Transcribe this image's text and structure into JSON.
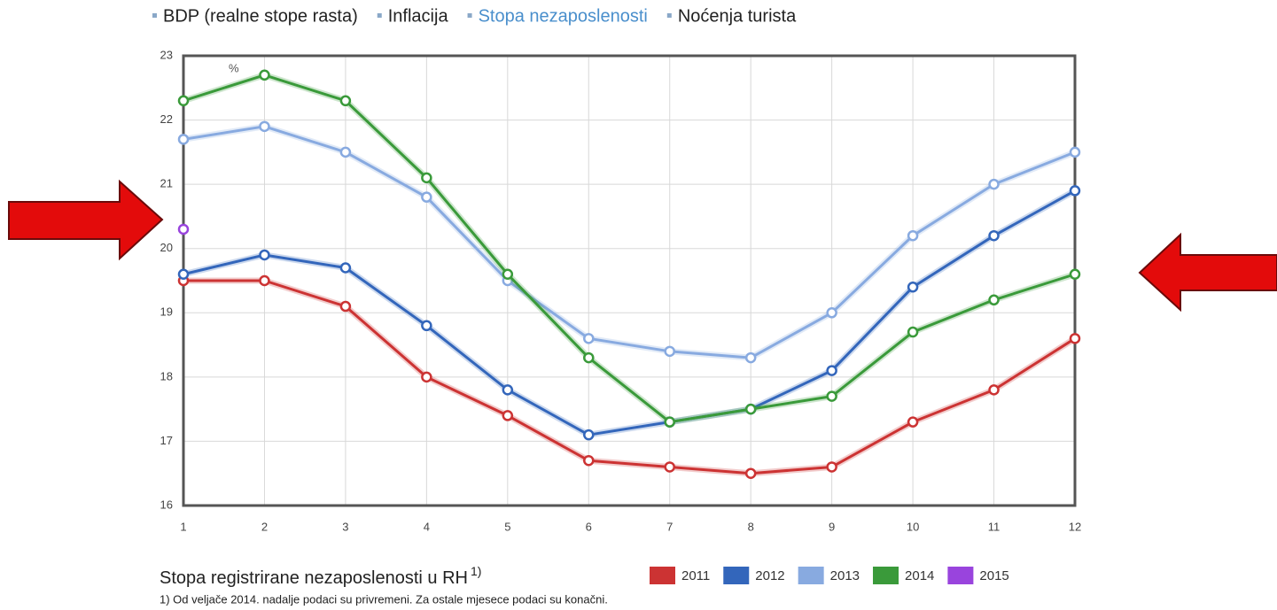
{
  "tabs": [
    "BDP (realne stope rasta)",
    "Inflacija",
    "Stopa nezaposlenosti",
    "Noćenja turista"
  ],
  "active_tab": 2,
  "chart_data": {
    "type": "line",
    "title": "Stopa registrirane nezaposlenosti u RH",
    "title_note": "1)",
    "y_unit": "%",
    "footnote": "1) Od veljače 2014. nadalje podaci su privremeni. Za ostale mjesece podaci su konačni.",
    "x": [
      1,
      2,
      3,
      4,
      5,
      6,
      7,
      8,
      9,
      10,
      11,
      12
    ],
    "xlim": [
      1,
      12
    ],
    "xticks": [
      1,
      2,
      3,
      4,
      5,
      6,
      7,
      8,
      9,
      10,
      11,
      12
    ],
    "ylim": [
      16,
      23
    ],
    "yticks": [
      16,
      17,
      18,
      19,
      20,
      21,
      22,
      23
    ],
    "grid": true,
    "legend": "bottom-right",
    "series": [
      {
        "name": "2011",
        "color": "#cc3333",
        "values": [
          19.5,
          19.5,
          19.1,
          18.0,
          17.4,
          16.7,
          16.6,
          16.5,
          16.6,
          17.3,
          17.8,
          18.6
        ]
      },
      {
        "name": "2012",
        "color": "#3366bb",
        "values": [
          19.6,
          19.9,
          19.7,
          18.8,
          17.8,
          17.1,
          17.3,
          17.5,
          18.1,
          19.4,
          20.2,
          20.9
        ]
      },
      {
        "name": "2013",
        "color": "#88aae0",
        "values": [
          21.7,
          21.9,
          21.5,
          20.8,
          19.5,
          18.6,
          18.4,
          18.3,
          19.0,
          20.2,
          21.0,
          21.5
        ]
      },
      {
        "name": "2014",
        "color": "#3a9a3a",
        "values": [
          22.3,
          22.7,
          22.3,
          21.1,
          19.6,
          18.3,
          17.3,
          17.5,
          17.7,
          18.7,
          19.2,
          19.6
        ]
      },
      {
        "name": "2015",
        "color": "#9944dd",
        "values": [
          20.3,
          null,
          null,
          null,
          null,
          null,
          null,
          null,
          null,
          null,
          null,
          null
        ]
      }
    ]
  }
}
